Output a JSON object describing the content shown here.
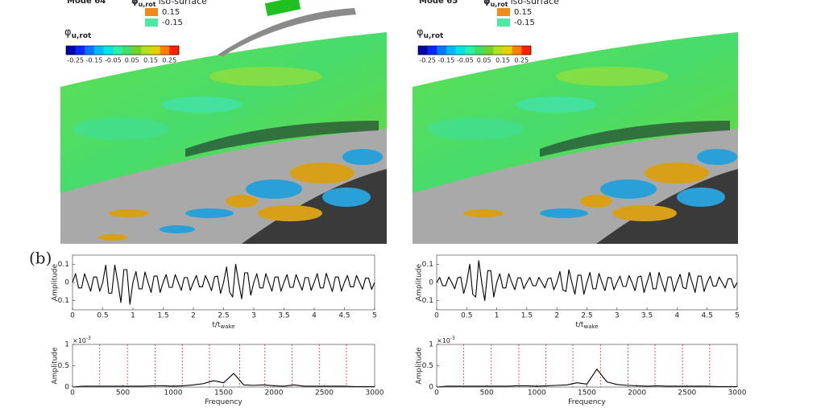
{
  "panels": [
    {
      "mode": "Mode 64",
      "phi": "φ",
      "phi_sub": "u,rot",
      "iso": "iso-surface",
      "iso_levels": [
        {
          "value": 0.15,
          "color": "#f08a1c"
        },
        {
          "value": -0.15,
          "color": "#48eaa4"
        }
      ]
    },
    {
      "mode": "Mode 65",
      "phi": "φ",
      "phi_sub": "u,rot",
      "iso": "iso-surface",
      "iso_levels": [
        {
          "value": 0.15,
          "color": "#f08a1c"
        },
        {
          "value": -0.15,
          "color": "#48eaa4"
        }
      ]
    }
  ],
  "colorbar": {
    "range": [
      -0.3,
      0.3
    ],
    "ticks": [
      -0.25,
      -0.15,
      -0.05,
      0.05,
      0.15,
      0.25
    ],
    "colors": [
      "#0000a8",
      "#0028ff",
      "#0078ff",
      "#00b8ff",
      "#00e4e8",
      "#28f0a8",
      "#40e068",
      "#70d428",
      "#b0e020",
      "#e8d000",
      "#ff8000",
      "#ff2000"
    ]
  },
  "panel_label": "(b)",
  "chart_data": [
    {
      "type": "line",
      "ylabel": "Amplitude",
      "xlabel": "t/t",
      "xlabel_sub": "wake",
      "color": "#000000",
      "xlim": [
        0,
        5
      ],
      "xticks": [
        0,
        0.5,
        1,
        1.5,
        2,
        2.5,
        3,
        3.5,
        4,
        4.5,
        5
      ],
      "ylim": [
        -0.15,
        0.15
      ],
      "yticks": [
        -0.1,
        0,
        0.1
      ],
      "x": [
        0,
        0.05,
        0.1,
        0.15,
        0.2,
        0.25,
        0.3,
        0.35,
        0.4,
        0.45,
        0.5,
        0.55,
        0.6,
        0.65,
        0.7,
        0.75,
        0.8,
        0.85,
        0.9,
        0.95,
        1,
        1.05,
        1.1,
        1.15,
        1.2,
        1.25,
        1.3,
        1.35,
        1.4,
        1.45,
        1.5,
        1.55,
        1.6,
        1.65,
        1.7,
        1.75,
        1.8,
        1.85,
        1.9,
        1.95,
        2,
        2.05,
        2.1,
        2.15,
        2.2,
        2.25,
        2.3,
        2.35,
        2.4,
        2.45,
        2.5,
        2.55,
        2.6,
        2.65,
        2.7,
        2.75,
        2.8,
        2.85,
        2.9,
        2.95,
        3,
        3.05,
        3.1,
        3.15,
        3.2,
        3.25,
        3.3,
        3.35,
        3.4,
        3.45,
        3.5,
        3.55,
        3.6,
        3.65,
        3.7,
        3.75,
        3.8,
        3.85,
        3.9,
        3.95,
        4,
        4.05,
        4.1,
        4.15,
        4.2,
        4.25,
        4.3,
        4.35,
        4.4,
        4.45,
        4.5,
        4.55,
        4.6,
        4.65,
        4.7,
        4.75,
        4.8,
        4.85,
        4.9,
        4.95,
        5
      ],
      "values": [
        0,
        0.048,
        -0.03,
        -0.03,
        0.048,
        0,
        -0.048,
        0.03,
        0.03,
        -0.048,
        0,
        0.095,
        -0.059,
        -0.059,
        0.095,
        0,
        -0.11,
        0.07,
        0.07,
        -0.12,
        0,
        0.06,
        -0.035,
        -0.035,
        0.057,
        0,
        -0.055,
        0.035,
        0.035,
        -0.055,
        0,
        0.043,
        -0.027,
        -0.027,
        0.043,
        0,
        -0.043,
        0.027,
        0.027,
        -0.043,
        0,
        0.038,
        -0.024,
        -0.024,
        0.038,
        0,
        -0.045,
        0.03,
        0.035,
        -0.06,
        0,
        0.085,
        -0.053,
        -0.08,
        0.1,
        0,
        -0.09,
        0.053,
        0.053,
        -0.07,
        0,
        0.048,
        -0.03,
        -0.03,
        0.048,
        0,
        -0.048,
        0.03,
        0.03,
        -0.048,
        0,
        0.043,
        -0.027,
        -0.027,
        0.043,
        0,
        -0.043,
        0.027,
        0.027,
        -0.043,
        0,
        0.048,
        -0.03,
        -0.03,
        0.05,
        0,
        -0.05,
        0.03,
        0.03,
        -0.048,
        0,
        0.038,
        -0.024,
        -0.024,
        0.038,
        0,
        -0.038,
        0.024,
        0.024,
        -0.038,
        0
      ]
    },
    {
      "type": "line",
      "ylabel": "Amplitude",
      "xlabel": "t/t",
      "xlabel_sub": "wake",
      "color": "#000000",
      "xlim": [
        0,
        5
      ],
      "xticks": [
        0,
        0.5,
        1,
        1.5,
        2,
        2.5,
        3,
        3.5,
        4,
        4.5,
        5
      ],
      "ylim": [
        -0.15,
        0.15
      ],
      "yticks": [
        -0.1,
        0,
        0.1
      ],
      "x": [
        0,
        0.05,
        0.1,
        0.15,
        0.2,
        0.25,
        0.3,
        0.35,
        0.4,
        0.45,
        0.5,
        0.55,
        0.6,
        0.65,
        0.7,
        0.75,
        0.8,
        0.85,
        0.9,
        0.95,
        1,
        1.05,
        1.1,
        1.15,
        1.2,
        1.25,
        1.3,
        1.35,
        1.4,
        1.45,
        1.5,
        1.55,
        1.6,
        1.65,
        1.7,
        1.75,
        1.8,
        1.85,
        1.9,
        1.95,
        2,
        2.05,
        2.1,
        2.15,
        2.2,
        2.25,
        2.3,
        2.35,
        2.4,
        2.45,
        2.5,
        2.55,
        2.6,
        2.65,
        2.7,
        2.75,
        2.8,
        2.85,
        2.9,
        2.95,
        3,
        3.05,
        3.1,
        3.15,
        3.2,
        3.25,
        3.3,
        3.35,
        3.4,
        3.45,
        3.5,
        3.55,
        3.6,
        3.65,
        3.7,
        3.75,
        3.8,
        3.85,
        3.9,
        3.95,
        4,
        4.05,
        4.1,
        4.15,
        4.2,
        4.25,
        4.3,
        4.35,
        4.4,
        4.45,
        4.5,
        4.55,
        4.6,
        4.65,
        4.7,
        4.75,
        4.8,
        4.85,
        4.9,
        4.95,
        5
      ],
      "values": [
        0,
        0.028,
        -0.018,
        -0.018,
        0.03,
        0,
        -0.035,
        0.025,
        0.03,
        -0.06,
        0,
        0.1,
        -0.065,
        -0.08,
        0.12,
        0,
        -0.1,
        0.065,
        0.065,
        -0.08,
        0,
        0.048,
        -0.03,
        -0.03,
        0.048,
        0,
        -0.04,
        0.025,
        0.025,
        -0.035,
        0,
        0.028,
        -0.018,
        -0.018,
        0.028,
        0,
        -0.03,
        0.02,
        0.025,
        -0.04,
        0,
        0.06,
        -0.04,
        -0.05,
        0.07,
        0,
        -0.065,
        0.04,
        0.04,
        -0.065,
        0,
        0.055,
        -0.035,
        -0.035,
        0.05,
        0,
        -0.045,
        0.028,
        0.025,
        -0.04,
        0,
        0.035,
        -0.022,
        -0.022,
        0.038,
        0,
        -0.045,
        0.03,
        0.035,
        -0.055,
        0,
        0.055,
        -0.035,
        -0.035,
        0.055,
        0,
        -0.05,
        0.03,
        0.03,
        -0.05,
        0,
        0.045,
        -0.028,
        -0.035,
        0.055,
        0,
        -0.055,
        0.035,
        0.035,
        -0.05,
        0,
        0.035,
        -0.02,
        -0.02,
        0.03,
        0,
        -0.03,
        0.02,
        0.02,
        -0.03,
        0
      ]
    },
    {
      "type": "line",
      "ylabel": "Amplitude",
      "xlabel": "Frequency",
      "y_multiplier": "×10",
      "y_multiplier_exp": "-3",
      "color": "#000000",
      "xlim": [
        0,
        3000
      ],
      "xticks": [
        0,
        500,
        1000,
        1500,
        2000,
        2500,
        3000
      ],
      "ylim": [
        0,
        1
      ],
      "yticks": [
        0,
        0.5,
        1
      ],
      "vlines": [
        270,
        545,
        820,
        1090,
        1360,
        1660,
        1910,
        2180,
        2450,
        2720
      ],
      "vline_color": "#e03030",
      "x": [
        0,
        100,
        200,
        300,
        400,
        500,
        600,
        700,
        800,
        900,
        1000,
        1100,
        1200,
        1300,
        1400,
        1500,
        1600,
        1700,
        1800,
        1900,
        2000,
        2100,
        2200,
        2300,
        2400,
        2500,
        2600,
        2700,
        2800,
        2900,
        3000
      ],
      "values": [
        0,
        0.02,
        0.02,
        0.02,
        0.02,
        0.02,
        0.02,
        0.02,
        0.03,
        0.03,
        0.02,
        0.03,
        0.05,
        0.08,
        0.15,
        0.1,
        0.32,
        0.05,
        0.04,
        0.05,
        0.03,
        0.02,
        0.05,
        0.02,
        0.02,
        0.02,
        0.02,
        0.02,
        0.01,
        0.01,
        0.01
      ]
    },
    {
      "type": "line",
      "ylabel": "Amplitude",
      "xlabel": "Frequency",
      "y_multiplier": "×10",
      "y_multiplier_exp": "-3",
      "color": "#000000",
      "xlim": [
        0,
        3000
      ],
      "xticks": [
        0,
        500,
        1000,
        1500,
        2000,
        2500,
        3000
      ],
      "ylim": [
        0,
        1
      ],
      "yticks": [
        0,
        0.5,
        1
      ],
      "vlines": [
        270,
        545,
        820,
        1090,
        1360,
        1635,
        1910,
        2180,
        2455,
        2725
      ],
      "vline_color": "#e03030",
      "x": [
        0,
        100,
        200,
        300,
        400,
        500,
        600,
        700,
        800,
        900,
        1000,
        1100,
        1200,
        1300,
        1400,
        1500,
        1600,
        1700,
        1800,
        1900,
        2000,
        2100,
        2200,
        2300,
        2400,
        2500,
        2600,
        2700,
        2800,
        2900,
        3000
      ],
      "values": [
        0,
        0.02,
        0.02,
        0.02,
        0.02,
        0.02,
        0.02,
        0.02,
        0.03,
        0.03,
        0.02,
        0.03,
        0.04,
        0.05,
        0.1,
        0.07,
        0.42,
        0.12,
        0.06,
        0.04,
        0.03,
        0.02,
        0.03,
        0.02,
        0.02,
        0.02,
        0.02,
        0.02,
        0.01,
        0.01,
        0.01
      ]
    }
  ]
}
